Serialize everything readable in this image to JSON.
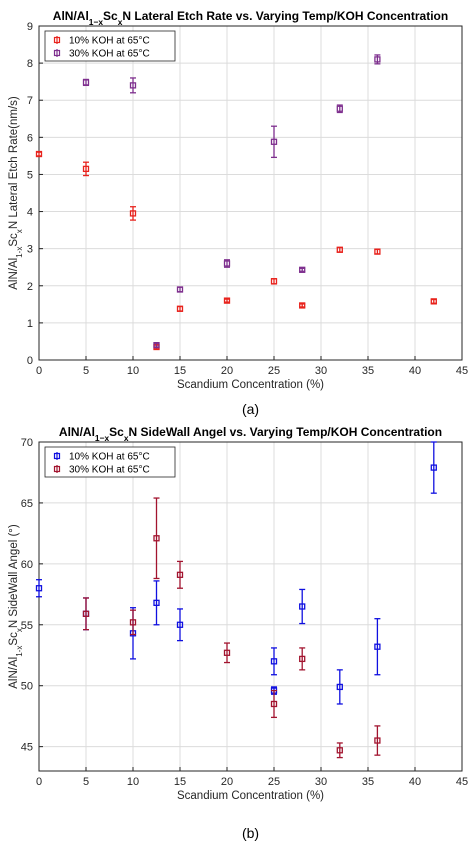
{
  "chart_data": [
    {
      "type": "scatter",
      "title": "AlN/Al1-xScxN Lateral Etch Rate vs. Varying Temp/KOH Concentration",
      "title_parts": {
        "pre": "AlN/Al",
        "sub1": "1−x",
        "mid": "Sc",
        "sub2": "x",
        "post": "N Lateral Etch Rate vs. Varying Temp/KOH Concentration"
      },
      "xlabel": "Scandium Concentration (%)",
      "ylabel": "AlN/Al1-xScxN Lateral Etch Rate(nm/s)",
      "ylabel_parts": {
        "pre": "AlN/Al",
        "sub1": "1-x",
        "mid": "Sc",
        "sub2": "x",
        "post": "N Lateral Etch Rate(nm/s)"
      },
      "xlim": [
        0,
        45
      ],
      "ylim": [
        0,
        9
      ],
      "xticks": [
        "0",
        "5",
        "10",
        "15",
        "20",
        "25",
        "30",
        "35",
        "40",
        "45"
      ],
      "yticks": [
        "0",
        "1",
        "2",
        "3",
        "4",
        "5",
        "6",
        "7",
        "8",
        "9"
      ],
      "grid": true,
      "legend_position": "top-left",
      "caption": "(a)",
      "series": [
        {
          "name": "10% KOH at 65°C",
          "color": "#e8231d",
          "marker": "square",
          "points": [
            {
              "x": 0,
              "y": 5.55,
              "err": 0.05
            },
            {
              "x": 5,
              "y": 5.15,
              "err": 0.18
            },
            {
              "x": 10,
              "y": 3.95,
              "err": 0.18
            },
            {
              "x": 12.5,
              "y": 0.35,
              "err": 0.05
            },
            {
              "x": 15,
              "y": 1.38,
              "err": 0.06
            },
            {
              "x": 20,
              "y": 1.6,
              "err": 0.04
            },
            {
              "x": 25,
              "y": 2.12,
              "err": 0.07
            },
            {
              "x": 28,
              "y": 1.47,
              "err": 0.04
            },
            {
              "x": 32,
              "y": 2.97,
              "err": 0.06
            },
            {
              "x": 36,
              "y": 2.92,
              "err": 0.06
            },
            {
              "x": 42,
              "y": 1.58,
              "err": 0.05
            }
          ]
        },
        {
          "name": "30% KOH at 65°C",
          "color": "#7e2f8e",
          "marker": "square",
          "points": [
            {
              "x": 5,
              "y": 7.48,
              "err": 0.08
            },
            {
              "x": 10,
              "y": 7.4,
              "err": 0.2
            },
            {
              "x": 12.5,
              "y": 0.4,
              "err": 0.05
            },
            {
              "x": 15,
              "y": 1.9,
              "err": 0.06
            },
            {
              "x": 20,
              "y": 2.6,
              "err": 0.1
            },
            {
              "x": 25,
              "y": 5.88,
              "err": 0.42
            },
            {
              "x": 28,
              "y": 2.43,
              "err": 0.04
            },
            {
              "x": 32,
              "y": 6.77,
              "err": 0.1
            },
            {
              "x": 36,
              "y": 8.1,
              "err": 0.12
            }
          ]
        }
      ]
    },
    {
      "type": "scatter",
      "title": "AlN/Al1-xScxN SideWall Angel vs. Varying Temp/KOH Concentration",
      "title_parts": {
        "pre": "AlN/Al",
        "sub1": "1−x",
        "mid": "Sc",
        "sub2": "x",
        "post": "N SideWall Angel vs. Varying Temp/KOH Concentration"
      },
      "xlabel": "Scandium Concentration (%)",
      "ylabel": "AlN/Al1-xScxN SideWall Angel (°)",
      "ylabel_parts": {
        "pre": "AlN/Al",
        "sub1": "1-x",
        "mid": "Sc",
        "sub2": "x",
        "post": "N SideWall Angel (°)"
      },
      "xlim": [
        0,
        45
      ],
      "ylim": [
        43,
        70
      ],
      "xticks": [
        "0",
        "5",
        "10",
        "15",
        "20",
        "25",
        "30",
        "35",
        "40",
        "45"
      ],
      "yticks": [
        "45",
        "50",
        "55",
        "60",
        "65",
        "70"
      ],
      "grid": true,
      "legend_position": "top-left",
      "caption": "(b)",
      "series": [
        {
          "name": "10% KOH at 65°C",
          "color": "#1010e0",
          "marker": "square",
          "points": [
            {
              "x": 0,
              "y": 58.0,
              "err": 0.7
            },
            {
              "x": 5,
              "y": 55.9,
              "err": 1.3
            },
            {
              "x": 10,
              "y": 54.3,
              "err": 2.1
            },
            {
              "x": 12.5,
              "y": 56.8,
              "err": 1.8
            },
            {
              "x": 15,
              "y": 55.0,
              "err": 1.3
            },
            {
              "x": 25,
              "y": 52.0,
              "err": 1.1
            },
            {
              "x": 25,
              "y": 49.6,
              "err": 0.3
            },
            {
              "x": 28,
              "y": 56.5,
              "err": 1.4
            },
            {
              "x": 32,
              "y": 49.9,
              "err": 1.4
            },
            {
              "x": 36,
              "y": 53.2,
              "err": 2.3
            },
            {
              "x": 42,
              "y": 67.9,
              "err": 2.1
            }
          ]
        },
        {
          "name": "30% KOH at 65°C",
          "color": "#a2142f",
          "marker": "square",
          "points": [
            {
              "x": 5,
              "y": 55.9,
              "err": 1.3
            },
            {
              "x": 10,
              "y": 55.2,
              "err": 1.0
            },
            {
              "x": 12.5,
              "y": 62.1,
              "err": 3.3
            },
            {
              "x": 15,
              "y": 59.1,
              "err": 1.1
            },
            {
              "x": 20,
              "y": 52.7,
              "err": 0.8
            },
            {
              "x": 25,
              "y": 48.5,
              "err": 1.1
            },
            {
              "x": 28,
              "y": 52.2,
              "err": 0.9
            },
            {
              "x": 32,
              "y": 44.7,
              "err": 0.6
            },
            {
              "x": 36,
              "y": 45.5,
              "err": 1.2
            }
          ]
        }
      ]
    }
  ]
}
